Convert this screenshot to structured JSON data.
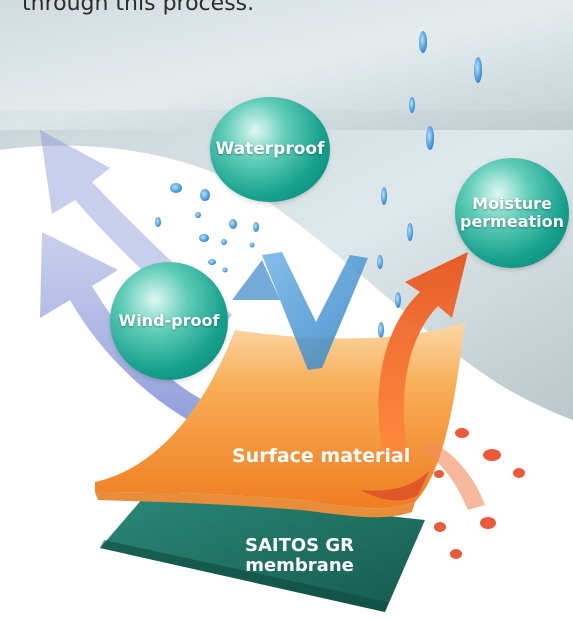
{
  "intro_text": "through this process.",
  "labels": {
    "waterproof": "Waterproof",
    "moisture_line1": "Moisture",
    "moisture_line2": "permeation",
    "windproof": "Wind-proof",
    "surface": "Surface material",
    "membrane_line1": "SAITOS GR",
    "membrane_line2": "membrane"
  },
  "colors": {
    "bubble_teal": "#16a08e",
    "surface_orange": "#f59a2a",
    "membrane_green": "#1d6e5f",
    "wind_arrow": "#7e8ed4",
    "heat_arrow": "#f06a32",
    "water_blue": "#3a8fd6"
  }
}
